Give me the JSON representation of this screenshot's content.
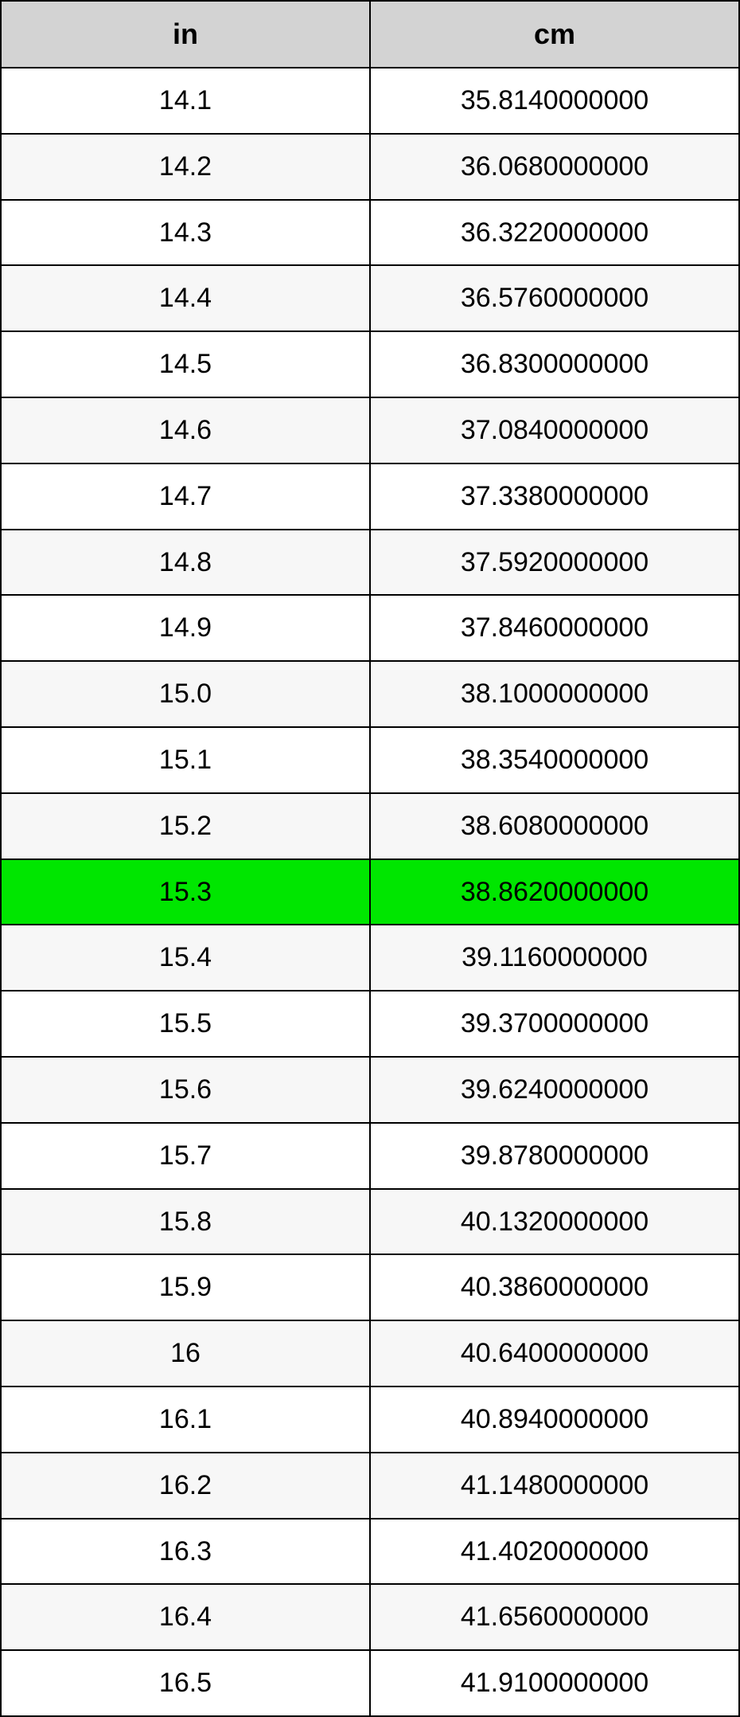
{
  "table": {
    "type": "table",
    "header_bg": "#d3d3d3",
    "border_color": "#000000",
    "row_even_bg": "#ffffff",
    "row_odd_bg": "#f7f7f7",
    "highlight_bg": "#00e600",
    "font_family": "Arial, Helvetica, sans-serif",
    "header_fontsize": 36,
    "cell_fontsize": 34,
    "columns": [
      {
        "label": "in",
        "width": "50%"
      },
      {
        "label": "cm",
        "width": "50%"
      }
    ],
    "rows": [
      {
        "in": "14.1",
        "cm": "35.8140000000",
        "highlight": false
      },
      {
        "in": "14.2",
        "cm": "36.0680000000",
        "highlight": false
      },
      {
        "in": "14.3",
        "cm": "36.3220000000",
        "highlight": false
      },
      {
        "in": "14.4",
        "cm": "36.5760000000",
        "highlight": false
      },
      {
        "in": "14.5",
        "cm": "36.8300000000",
        "highlight": false
      },
      {
        "in": "14.6",
        "cm": "37.0840000000",
        "highlight": false
      },
      {
        "in": "14.7",
        "cm": "37.3380000000",
        "highlight": false
      },
      {
        "in": "14.8",
        "cm": "37.5920000000",
        "highlight": false
      },
      {
        "in": "14.9",
        "cm": "37.8460000000",
        "highlight": false
      },
      {
        "in": "15.0",
        "cm": "38.1000000000",
        "highlight": false
      },
      {
        "in": "15.1",
        "cm": "38.3540000000",
        "highlight": false
      },
      {
        "in": "15.2",
        "cm": "38.6080000000",
        "highlight": false
      },
      {
        "in": "15.3",
        "cm": "38.8620000000",
        "highlight": true
      },
      {
        "in": "15.4",
        "cm": "39.1160000000",
        "highlight": false
      },
      {
        "in": "15.5",
        "cm": "39.3700000000",
        "highlight": false
      },
      {
        "in": "15.6",
        "cm": "39.6240000000",
        "highlight": false
      },
      {
        "in": "15.7",
        "cm": "39.8780000000",
        "highlight": false
      },
      {
        "in": "15.8",
        "cm": "40.1320000000",
        "highlight": false
      },
      {
        "in": "15.9",
        "cm": "40.3860000000",
        "highlight": false
      },
      {
        "in": "16",
        "cm": "40.6400000000",
        "highlight": false
      },
      {
        "in": "16.1",
        "cm": "40.8940000000",
        "highlight": false
      },
      {
        "in": "16.2",
        "cm": "41.1480000000",
        "highlight": false
      },
      {
        "in": "16.3",
        "cm": "41.4020000000",
        "highlight": false
      },
      {
        "in": "16.4",
        "cm": "41.6560000000",
        "highlight": false
      },
      {
        "in": "16.5",
        "cm": "41.9100000000",
        "highlight": false
      }
    ]
  }
}
